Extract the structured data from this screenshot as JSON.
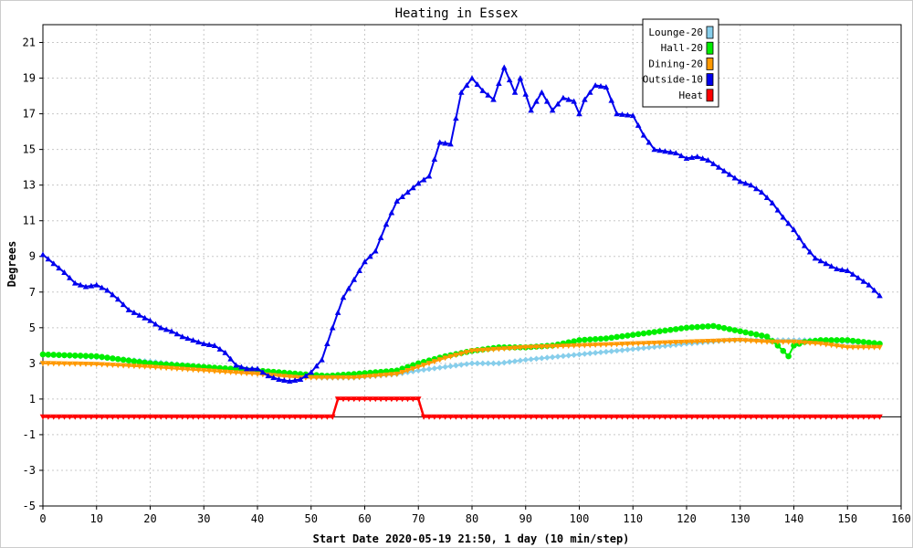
{
  "chart_data": {
    "type": "line",
    "title": "Heating in Essex",
    "xlabel": "Start Date 2020-05-19 21:50, 1 day (10 min/step)",
    "ylabel": "Degrees",
    "xlim": [
      0,
      160
    ],
    "ylim": [
      -5,
      22
    ],
    "xticks": [
      0,
      10,
      20,
      30,
      40,
      50,
      60,
      70,
      80,
      90,
      100,
      110,
      120,
      130,
      140,
      150,
      160
    ],
    "yticks": [
      -5,
      -3,
      -1,
      1,
      3,
      5,
      7,
      9,
      11,
      13,
      15,
      17,
      19,
      21
    ],
    "grid": true,
    "legend_position": "top-right",
    "series": [
      {
        "name": "Lounge-20",
        "color": "#87ceeb",
        "marker": "diamond",
        "keypoints": [
          [
            0,
            3.5
          ],
          [
            12,
            3.3
          ],
          [
            20,
            3.1
          ],
          [
            30,
            2.8
          ],
          [
            40,
            2.5
          ],
          [
            46,
            2.3
          ],
          [
            52,
            2.2
          ],
          [
            58,
            2.2
          ],
          [
            62,
            2.3
          ],
          [
            66,
            2.4
          ],
          [
            70,
            2.6
          ],
          [
            75,
            2.8
          ],
          [
            80,
            3.0
          ],
          [
            85,
            3.0
          ],
          [
            90,
            3.2
          ],
          [
            100,
            3.5
          ],
          [
            110,
            3.8
          ],
          [
            120,
            4.1
          ],
          [
            128,
            4.3
          ],
          [
            135,
            4.3
          ],
          [
            140,
            4.3
          ],
          [
            145,
            4.3
          ],
          [
            150,
            4.2
          ],
          [
            156,
            4.1
          ]
        ]
      },
      {
        "name": "Hall-20",
        "color": "#00ee00",
        "marker": "circle",
        "keypoints": [
          [
            0,
            3.5
          ],
          [
            10,
            3.4
          ],
          [
            20,
            3.0
          ],
          [
            30,
            2.8
          ],
          [
            40,
            2.6
          ],
          [
            48,
            2.4
          ],
          [
            53,
            2.3
          ],
          [
            58,
            2.4
          ],
          [
            62,
            2.5
          ],
          [
            66,
            2.6
          ],
          [
            70,
            3.0
          ],
          [
            75,
            3.4
          ],
          [
            80,
            3.7
          ],
          [
            85,
            3.9
          ],
          [
            90,
            3.9
          ],
          [
            95,
            4.0
          ],
          [
            100,
            4.3
          ],
          [
            105,
            4.4
          ],
          [
            110,
            4.6
          ],
          [
            115,
            4.8
          ],
          [
            120,
            5.0
          ],
          [
            125,
            5.1
          ],
          [
            130,
            4.8
          ],
          [
            135,
            4.5
          ],
          [
            137,
            4.0
          ],
          [
            139,
            3.4
          ],
          [
            140,
            4.0
          ],
          [
            142,
            4.2
          ],
          [
            145,
            4.3
          ],
          [
            150,
            4.3
          ],
          [
            156,
            4.1
          ]
        ]
      },
      {
        "name": "Dining-20",
        "color": "#ff9900",
        "marker": "triangle-down",
        "keypoints": [
          [
            0,
            3.0
          ],
          [
            10,
            2.95
          ],
          [
            20,
            2.8
          ],
          [
            30,
            2.6
          ],
          [
            40,
            2.4
          ],
          [
            48,
            2.2
          ],
          [
            53,
            2.2
          ],
          [
            58,
            2.2
          ],
          [
            62,
            2.3
          ],
          [
            66,
            2.4
          ],
          [
            70,
            2.8
          ],
          [
            75,
            3.3
          ],
          [
            80,
            3.7
          ],
          [
            85,
            3.8
          ],
          [
            90,
            3.9
          ],
          [
            100,
            4.0
          ],
          [
            110,
            4.1
          ],
          [
            120,
            4.2
          ],
          [
            130,
            4.3
          ],
          [
            135,
            4.2
          ],
          [
            140,
            4.2
          ],
          [
            145,
            4.1
          ],
          [
            150,
            3.9
          ],
          [
            156,
            3.9
          ]
        ]
      },
      {
        "name": "Outside-10",
        "color": "#0000ee",
        "marker": "triangle",
        "keypoints": [
          [
            0,
            9.1
          ],
          [
            2,
            8.6
          ],
          [
            4,
            8.1
          ],
          [
            6,
            7.5
          ],
          [
            8,
            7.3
          ],
          [
            10,
            7.4
          ],
          [
            12,
            7.1
          ],
          [
            14,
            6.6
          ],
          [
            16,
            6.0
          ],
          [
            18,
            5.7
          ],
          [
            20,
            5.4
          ],
          [
            22,
            5.0
          ],
          [
            24,
            4.8
          ],
          [
            26,
            4.5
          ],
          [
            28,
            4.3
          ],
          [
            30,
            4.1
          ],
          [
            32,
            4.0
          ],
          [
            34,
            3.6
          ],
          [
            36,
            2.9
          ],
          [
            38,
            2.7
          ],
          [
            40,
            2.7
          ],
          [
            42,
            2.3
          ],
          [
            44,
            2.1
          ],
          [
            46,
            2.0
          ],
          [
            48,
            2.1
          ],
          [
            50,
            2.5
          ],
          [
            52,
            3.2
          ],
          [
            54,
            5.0
          ],
          [
            56,
            6.7
          ],
          [
            58,
            7.7
          ],
          [
            60,
            8.7
          ],
          [
            62,
            9.3
          ],
          [
            64,
            10.8
          ],
          [
            66,
            12.1
          ],
          [
            68,
            12.6
          ],
          [
            70,
            13.1
          ],
          [
            72,
            13.5
          ],
          [
            74,
            15.4
          ],
          [
            76,
            15.3
          ],
          [
            78,
            18.2
          ],
          [
            80,
            19.0
          ],
          [
            82,
            18.3
          ],
          [
            84,
            17.8
          ],
          [
            86,
            19.6
          ],
          [
            88,
            18.2
          ],
          [
            89,
            19.0
          ],
          [
            91,
            17.2
          ],
          [
            93,
            18.2
          ],
          [
            95,
            17.2
          ],
          [
            97,
            17.9
          ],
          [
            99,
            17.7
          ],
          [
            100,
            17.0
          ],
          [
            101,
            17.8
          ],
          [
            103,
            18.6
          ],
          [
            105,
            18.5
          ],
          [
            107,
            17.0
          ],
          [
            110,
            16.9
          ],
          [
            112,
            15.8
          ],
          [
            114,
            15.0
          ],
          [
            116,
            14.9
          ],
          [
            118,
            14.8
          ],
          [
            120,
            14.5
          ],
          [
            122,
            14.6
          ],
          [
            124,
            14.4
          ],
          [
            126,
            14.0
          ],
          [
            128,
            13.6
          ],
          [
            130,
            13.2
          ],
          [
            132,
            13.0
          ],
          [
            134,
            12.6
          ],
          [
            136,
            12.0
          ],
          [
            138,
            11.2
          ],
          [
            140,
            10.5
          ],
          [
            142,
            9.6
          ],
          [
            144,
            8.9
          ],
          [
            146,
            8.6
          ],
          [
            148,
            8.3
          ],
          [
            150,
            8.2
          ],
          [
            152,
            7.8
          ],
          [
            154,
            7.4
          ],
          [
            156,
            6.8
          ]
        ]
      },
      {
        "name": "Heat",
        "color": "#ff0000",
        "marker": "triangle-down",
        "keypoints": [
          [
            0,
            0
          ],
          [
            54,
            0
          ],
          [
            55,
            1
          ],
          [
            70,
            1
          ],
          [
            71,
            0
          ],
          [
            156,
            0
          ]
        ]
      }
    ]
  }
}
